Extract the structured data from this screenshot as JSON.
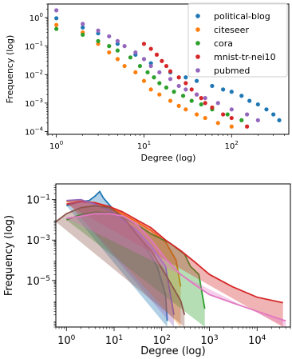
{
  "chart_data": [
    {
      "type": "scatter",
      "title": "",
      "xlabel": "Degree (log)",
      "ylabel": "Frequency (log)",
      "xscale": "log",
      "yscale": "log",
      "xlim": [
        0.8,
        450
      ],
      "ylim": [
        8e-05,
        3
      ],
      "x_ticks": [
        {
          "value": 1,
          "label": "10^0"
        },
        {
          "value": 10,
          "label": "10^1"
        },
        {
          "value": 100,
          "label": "10^2"
        }
      ],
      "y_ticks": [
        {
          "value": 0.0001,
          "label": "10^-4"
        },
        {
          "value": 0.001,
          "label": "10^-3"
        },
        {
          "value": 0.01,
          "label": "10^-2"
        },
        {
          "value": 0.1,
          "label": "10^-1"
        },
        {
          "value": 1,
          "label": "10^0"
        }
      ],
      "legend_position": "top-right",
      "grid": false,
      "series": [
        {
          "name": "political-blog",
          "color": "#1f77b4",
          "points": [
            [
              1,
              0.95
            ],
            [
              2,
              0.45
            ],
            [
              3,
              0.28
            ],
            [
              5,
              0.12
            ],
            [
              8,
              0.05
            ],
            [
              12,
              0.025
            ],
            [
              20,
              0.012
            ],
            [
              30,
              0.008
            ],
            [
              40,
              0.006
            ],
            [
              60,
              0.004
            ],
            [
              80,
              0.003
            ],
            [
              100,
              0.0025
            ],
            [
              130,
              0.0018
            ],
            [
              160,
              0.0012
            ],
            [
              200,
              0.0009
            ],
            [
              250,
              0.0006
            ],
            [
              300,
              0.0004
            ],
            [
              350,
              0.00025
            ]
          ]
        },
        {
          "name": "citeseer",
          "color": "#ff7f0e",
          "points": [
            [
              1,
              0.55
            ],
            [
              2,
              0.3
            ],
            [
              3,
              0.12
            ],
            [
              4,
              0.06
            ],
            [
              5,
              0.035
            ],
            [
              6,
              0.02
            ],
            [
              8,
              0.012
            ],
            [
              10,
              0.006
            ],
            [
              12,
              0.003
            ],
            [
              15,
              0.002
            ],
            [
              20,
              0.0012
            ],
            [
              25,
              0.0008
            ],
            [
              30,
              0.0006
            ],
            [
              40,
              0.0004
            ],
            [
              50,
              0.0003
            ],
            [
              70,
              0.0002
            ],
            [
              100,
              0.00015
            ]
          ]
        },
        {
          "name": "cora",
          "color": "#2ca02c",
          "points": [
            [
              1,
              0.4
            ],
            [
              2,
              0.25
            ],
            [
              3,
              0.15
            ],
            [
              4,
              0.1
            ],
            [
              5,
              0.07
            ],
            [
              7,
              0.04
            ],
            [
              9,
              0.02
            ],
            [
              11,
              0.012
            ],
            [
              13,
              0.008
            ],
            [
              15,
              0.005
            ],
            [
              18,
              0.0035
            ],
            [
              22,
              0.0025
            ],
            [
              28,
              0.0018
            ],
            [
              35,
              0.0012
            ],
            [
              45,
              0.0009
            ],
            [
              60,
              0.0006
            ],
            [
              90,
              0.0004
            ],
            [
              130,
              0.00025
            ]
          ]
        },
        {
          "name": "mnist-tr-nei10",
          "color": "#d62728",
          "points": [
            [
              10,
              0.12
            ],
            [
              12,
              0.08
            ],
            [
              14,
              0.05
            ],
            [
              16,
              0.03
            ],
            [
              18,
              0.02
            ],
            [
              20,
              0.013
            ],
            [
              25,
              0.008
            ],
            [
              30,
              0.005
            ],
            [
              35,
              0.003
            ],
            [
              40,
              0.002
            ],
            [
              45,
              0.0015
            ],
            [
              50,
              0.001
            ],
            [
              60,
              0.0007
            ],
            [
              80,
              0.0004
            ],
            [
              100,
              0.0003
            ],
            [
              150,
              0.00015
            ]
          ]
        },
        {
          "name": "pubmed",
          "color": "#9467bd",
          "points": [
            [
              1,
              1.8
            ],
            [
              2,
              0.6
            ],
            [
              3,
              0.35
            ],
            [
              4,
              0.22
            ],
            [
              5,
              0.15
            ],
            [
              6,
              0.1
            ],
            [
              8,
              0.06
            ],
            [
              10,
              0.035
            ],
            [
              12,
              0.02
            ],
            [
              15,
              0.012
            ],
            [
              20,
              0.007
            ],
            [
              25,
              0.004
            ],
            [
              30,
              0.003
            ],
            [
              40,
              0.002
            ],
            [
              50,
              0.0015
            ],
            [
              70,
              0.001
            ],
            [
              100,
              0.0006
            ],
            [
              150,
              0.0004
            ],
            [
              200,
              0.00025
            ]
          ]
        }
      ]
    },
    {
      "type": "line",
      "title": "",
      "xlabel": "Degree (log)",
      "ylabel": "Frequency (log)",
      "xscale": "log",
      "yscale": "log",
      "xlim": [
        0.6,
        50000
      ],
      "ylim": [
        5e-08,
        0.6
      ],
      "x_ticks": [
        {
          "value": 1,
          "label": "10^0"
        },
        {
          "value": 10,
          "label": "10^1"
        },
        {
          "value": 100,
          "label": "10^2"
        },
        {
          "value": 1000,
          "label": "10^3"
        },
        {
          "value": 10000,
          "label": "10^4"
        }
      ],
      "y_ticks": [
        {
          "value": 0.1,
          "label": "10^-1"
        },
        {
          "value": 0.001,
          "label": "10^-3"
        },
        {
          "value": 1e-05,
          "label": "10^-5"
        }
      ],
      "grid": false,
      "series": [
        {
          "color": "#1f77b4",
          "points": [
            [
              1,
              0.05
            ],
            [
              2,
              0.08
            ],
            [
              3,
              0.09
            ],
            [
              4,
              0.15
            ],
            [
              5,
              0.25
            ],
            [
              6,
              0.12
            ],
            [
              10,
              0.03
            ],
            [
              20,
              0.006
            ],
            [
              40,
              0.0008
            ],
            [
              80,
              5e-05
            ],
            [
              120,
              2e-06
            ],
            [
              130,
              1e-07
            ]
          ]
        },
        {
          "color": "#ff7f0e",
          "points": [
            [
              1,
              0.08
            ],
            [
              2,
              0.09
            ],
            [
              4,
              0.07
            ],
            [
              8,
              0.04
            ],
            [
              15,
              0.02
            ],
            [
              30,
              0.008
            ],
            [
              60,
              0.003
            ],
            [
              120,
              0.0008
            ],
            [
              200,
              0.0001
            ],
            [
              250,
              5e-06
            ]
          ]
        },
        {
          "color": "#2ca02c",
          "points": [
            [
              1,
              0.01
            ],
            [
              2,
              0.018
            ],
            [
              4,
              0.024
            ],
            [
              8,
              0.022
            ],
            [
              15,
              0.013
            ],
            [
              30,
              0.006
            ],
            [
              60,
              0.002
            ],
            [
              150,
              0.0007
            ],
            [
              300,
              0.0002
            ],
            [
              400,
              5e-05
            ],
            [
              600,
              2e-05
            ],
            [
              800,
              4e-07
            ]
          ]
        },
        {
          "color": "#d62728",
          "points": [
            [
              1,
              0.06
            ],
            [
              2,
              0.08
            ],
            [
              4,
              0.07
            ],
            [
              8,
              0.045
            ],
            [
              15,
              0.025
            ],
            [
              30,
              0.01
            ],
            [
              60,
              0.004
            ],
            [
              120,
              0.001
            ],
            [
              250,
              0.0003
            ],
            [
              500,
              8e-05
            ],
            [
              1000,
              2e-05
            ],
            [
              3000,
              5e-06
            ],
            [
              10000,
              1.5e-06
            ],
            [
              35000,
              8e-07
            ]
          ]
        },
        {
          "color": "#9467bd",
          "points": [
            [
              1,
              0.09
            ],
            [
              2,
              0.1
            ],
            [
              4,
              0.06
            ],
            [
              8,
              0.03
            ],
            [
              15,
              0.01
            ],
            [
              30,
              0.003
            ],
            [
              60,
              0.0005
            ],
            [
              120,
              5e-05
            ],
            [
              180,
              2e-07
            ]
          ]
        },
        {
          "color": "#8c564b",
          "points": [
            [
              0.6,
              0.008
            ],
            [
              1,
              0.02
            ],
            [
              2,
              0.04
            ],
            [
              4,
              0.05
            ],
            [
              8,
              0.04
            ],
            [
              15,
              0.015
            ],
            [
              30,
              0.002
            ],
            [
              60,
              0.0003
            ],
            [
              120,
              2e-05
            ],
            [
              250,
              1e-06
            ],
            [
              300,
              2e-07
            ]
          ]
        },
        {
          "color": "#e377c2",
          "points": [
            [
              1,
              0.012
            ],
            [
              2,
              0.015
            ],
            [
              4,
              0.02
            ],
            [
              8,
              0.02
            ],
            [
              16,
              0.015
            ],
            [
              30,
              0.006
            ],
            [
              60,
              0.001
            ],
            [
              120,
              0.00012
            ],
            [
              250,
              2e-05
            ],
            [
              500,
              6e-06
            ],
            [
              1000,
              2e-06
            ],
            [
              3000,
              8e-07
            ],
            [
              10000,
              3e-07
            ],
            [
              40000,
              1e-07
            ]
          ]
        }
      ]
    }
  ]
}
